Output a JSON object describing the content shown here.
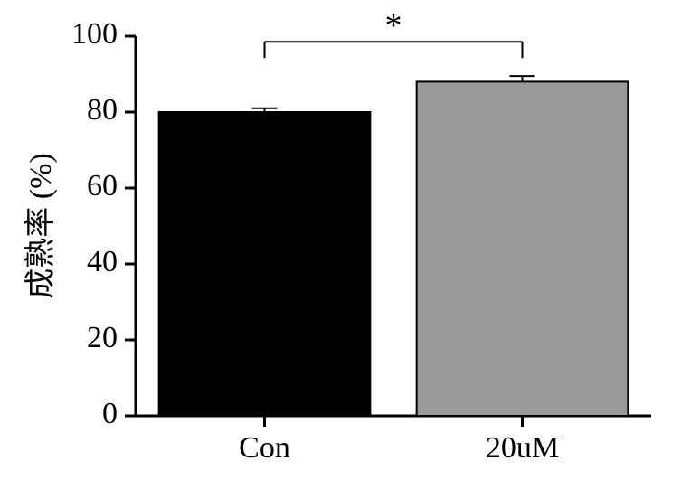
{
  "chart": {
    "type": "bar",
    "ylabel": "成熟率 (%)",
    "label_fontsize": 34,
    "tick_fontsize": 34,
    "categories": [
      "Con",
      "20uM"
    ],
    "values": [
      80,
      88
    ],
    "errors": [
      1,
      1.5
    ],
    "bar_colors": [
      "#000000",
      "#999999"
    ],
    "bar_border": "#000000",
    "bar_border_width": 2,
    "ylim": [
      0,
      100
    ],
    "ytick_step": 20,
    "yticks": [
      0,
      20,
      40,
      60,
      80,
      100
    ],
    "axis_color": "#000000",
    "axis_width": 3,
    "background_color": "#ffffff",
    "significance_label": "*",
    "significance_fontsize": 38,
    "cap_width": 14,
    "err_line_width": 2
  }
}
